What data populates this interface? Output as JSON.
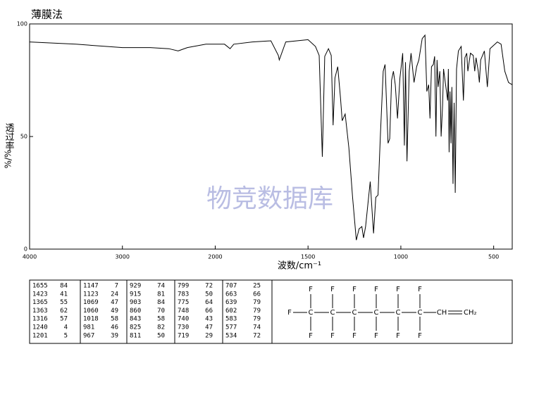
{
  "chart_data": {
    "type": "line",
    "title": "薄膜法",
    "xlabel": "波数/cm⁻¹",
    "ylabel": "透过率",
    "ylabel_unit": "%/%",
    "watermark": "物竞数据库",
    "color": "#000000",
    "xlim": [
      4000,
      400
    ],
    "xticks": [
      4000,
      3000,
      2000,
      1500,
      1000,
      500
    ],
    "ylim": [
      0,
      100
    ],
    "yticks": [
      0,
      50,
      100
    ],
    "x": [
      4000,
      3500,
      3000,
      2700,
      2500,
      2400,
      2300,
      2100,
      1950,
      1920,
      1900,
      1800,
      1700,
      1660,
      1655,
      1620,
      1500,
      1460,
      1440,
      1423,
      1410,
      1390,
      1375,
      1365,
      1355,
      1340,
      1325,
      1316,
      1300,
      1280,
      1260,
      1240,
      1225,
      1210,
      1201,
      1190,
      1175,
      1165,
      1155,
      1147,
      1135,
      1123,
      1110,
      1095,
      1085,
      1069,
      1060,
      1050,
      1040,
      1030,
      1018,
      1005,
      990,
      981,
      975,
      967,
      955,
      945,
      929,
      915,
      903,
      885,
      870,
      860,
      850,
      843,
      835,
      825,
      818,
      811,
      805,
      799,
      790,
      783,
      775,
      770,
      748,
      744,
      740,
      735,
      730,
      725,
      719,
      713,
      707,
      700,
      690,
      675,
      663,
      655,
      645,
      639,
      625,
      610,
      602,
      595,
      583,
      577,
      570,
      550,
      534,
      520,
      480,
      460,
      440,
      420,
      400
    ],
    "values": [
      92,
      91,
      89.5,
      89.5,
      89,
      88,
      89.5,
      91,
      91,
      89,
      91,
      92,
      92.5,
      86,
      84,
      92,
      93,
      90,
      86,
      41,
      85.6,
      89,
      86,
      55,
      76,
      81,
      67,
      57,
      60,
      45,
      23,
      4,
      9,
      10,
      5,
      10,
      22,
      30,
      17,
      7,
      23,
      24,
      51,
      79,
      82,
      47,
      49,
      75,
      79,
      73,
      58,
      76,
      87,
      46,
      83,
      39,
      79,
      87,
      74,
      81,
      84,
      93.5,
      95,
      70,
      73,
      58,
      81,
      82,
      85.6,
      50,
      84,
      72,
      79,
      50,
      64,
      80,
      66,
      80,
      43,
      70,
      47,
      72,
      29,
      65,
      25,
      80,
      88,
      90,
      66,
      85,
      87,
      79,
      87,
      86,
      79,
      85,
      79,
      74,
      84,
      88,
      72,
      89,
      92,
      91,
      79,
      74,
      73
    ],
    "peak_table": [
      [
        [
          1655,
          84
        ],
        [
          1423,
          41
        ],
        [
          1365,
          55
        ],
        [
          1363,
          62
        ],
        [
          1316,
          57
        ],
        [
          1240,
          4
        ],
        [
          1201,
          5
        ]
      ],
      [
        [
          1147,
          7
        ],
        [
          1123,
          24
        ],
        [
          1069,
          47
        ],
        [
          1060,
          49
        ],
        [
          1018,
          58
        ],
        [
          981,
          46
        ],
        [
          967,
          39
        ]
      ],
      [
        [
          929,
          74
        ],
        [
          915,
          81
        ],
        [
          903,
          84
        ],
        [
          860,
          70
        ],
        [
          843,
          58
        ],
        [
          825,
          82
        ],
        [
          811,
          50
        ]
      ],
      [
        [
          799,
          72
        ],
        [
          783,
          50
        ],
        [
          775,
          64
        ],
        [
          748,
          66
        ],
        [
          740,
          43
        ],
        [
          730,
          47
        ],
        [
          719,
          29
        ]
      ],
      [
        [
          707,
          25
        ],
        [
          663,
          66
        ],
        [
          639,
          79
        ],
        [
          602,
          79
        ],
        [
          583,
          79
        ],
        [
          577,
          74
        ],
        [
          534,
          72
        ]
      ]
    ],
    "structure": {
      "end_atom": "F",
      "chain": [
        "C",
        "C",
        "C",
        "C",
        "C",
        "C"
      ],
      "substituent": "F",
      "vinyl": [
        "CH",
        "CH₂"
      ]
    }
  }
}
